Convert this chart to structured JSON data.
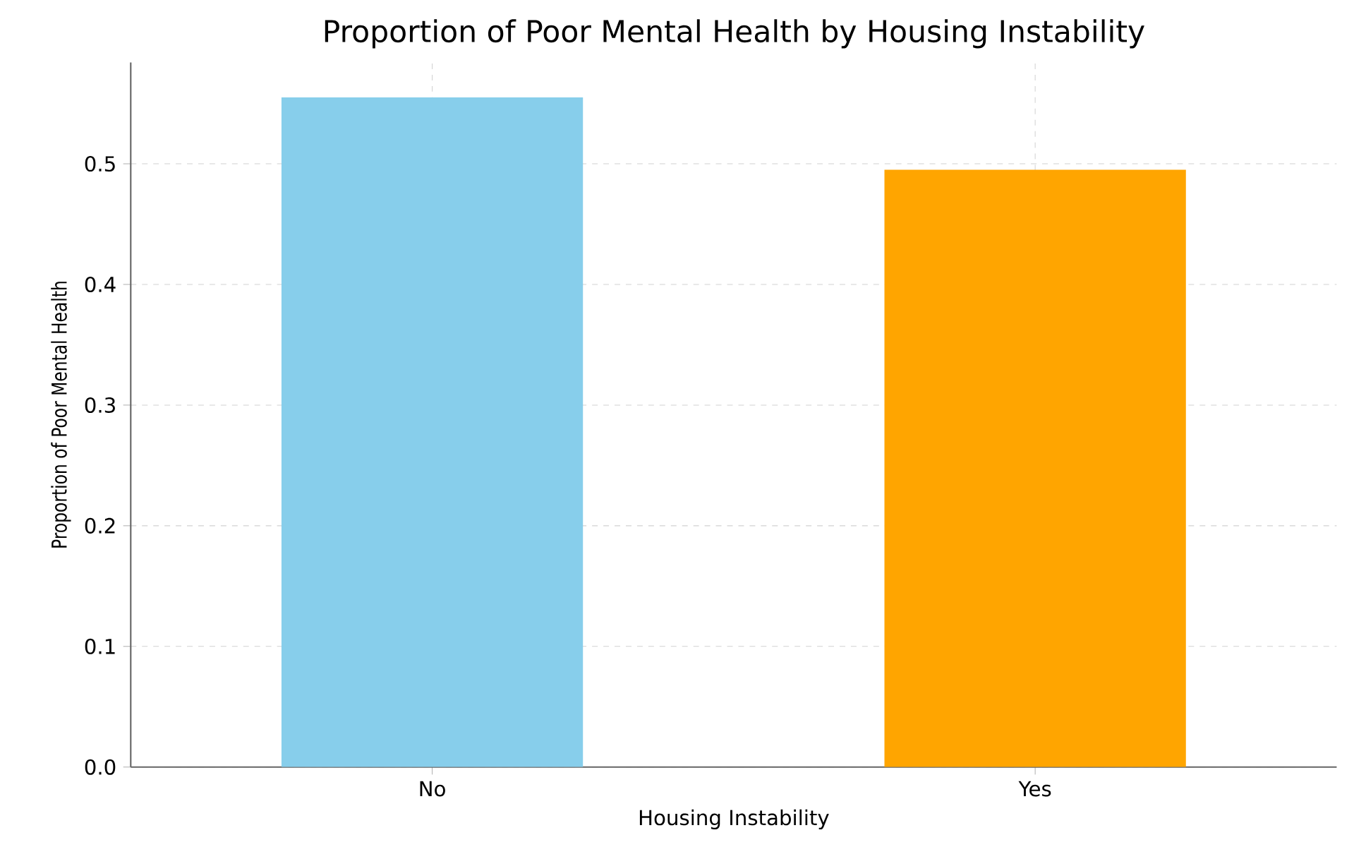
{
  "chart_data": {
    "type": "bar",
    "title": "Proportion of Poor Mental Health by Housing Instability",
    "xlabel": "Housing Instability",
    "ylabel": "Proportion of Poor Mental Health",
    "categories": [
      "No",
      "Yes"
    ],
    "values": [
      0.555,
      0.495
    ],
    "colors": [
      "#87ceeb",
      "#ffa500"
    ],
    "ylim": [
      0,
      0.584
    ],
    "yticks": [
      {
        "value": 0,
        "label": "0.0"
      },
      0.1,
      0.2,
      0.3,
      0.4,
      0.5
    ],
    "grid": true
  }
}
